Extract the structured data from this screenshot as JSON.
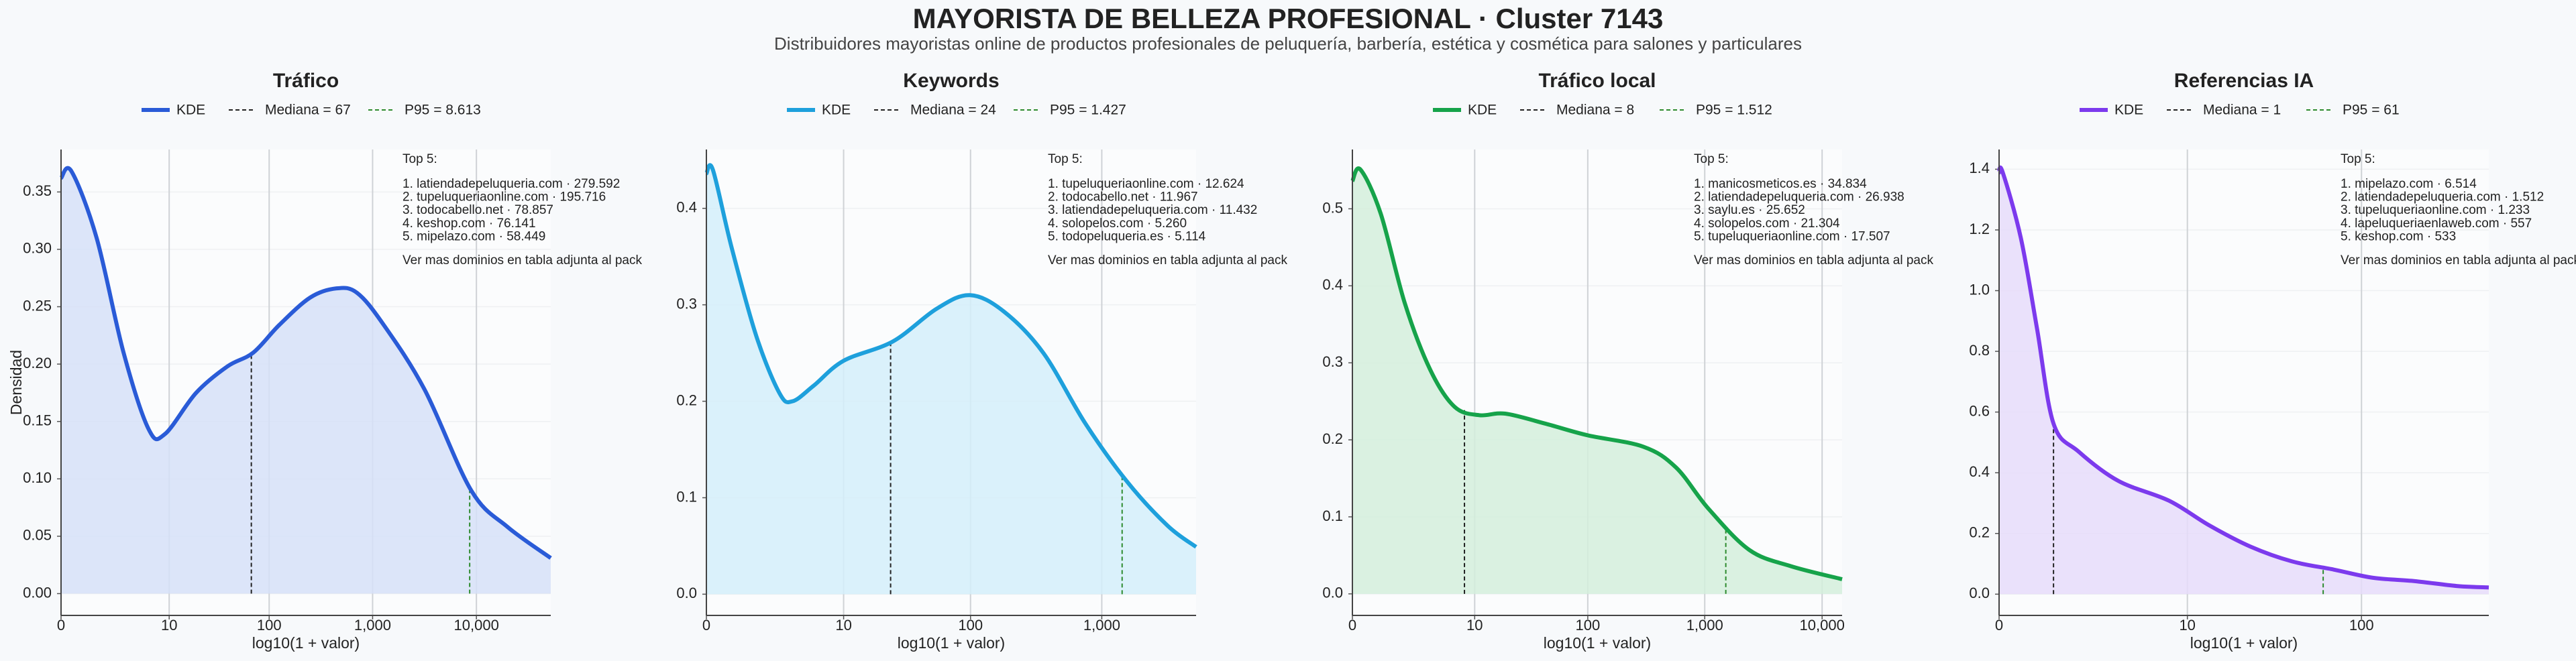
{
  "title": "MAYORISTA DE BELLEZA PROFESIONAL · Cluster 7143",
  "subtitle": "Distribuidores mayoristas online de productos profesionales de peluquería, barbería, estética y cosmética para salones y particulares",
  "chart_data": [
    {
      "type": "area",
      "title": "Tráfico",
      "xlabel": "log10(1 + valor)",
      "ylabel": "Densidad",
      "xscale": "log1p",
      "grid": true,
      "x": [
        0,
        0.26,
        1.2,
        3,
        6,
        9,
        19,
        39,
        70,
        125,
        250,
        450,
        710,
        1260,
        3160,
        8900,
        20000,
        52000
      ],
      "series": [
        {
          "name": "KDE",
          "color": "#2a5bd7",
          "fill": "#d6e0f8",
          "values": [
            0.362,
            0.368,
            0.31,
            0.21,
            0.143,
            0.139,
            0.175,
            0.198,
            0.21,
            0.234,
            0.258,
            0.266,
            0.262,
            0.235,
            0.178,
            0.09,
            0.058,
            0.031
          ]
        }
      ],
      "lines": [
        {
          "name": "Mediana = 67",
          "value": 67,
          "color": "#222222"
        },
        {
          "name": "P95 = 8.613",
          "value": 8613,
          "color": "#2e8b2e"
        }
      ],
      "xlim": [
        0,
        52000
      ],
      "xticks": [
        0,
        10,
        100,
        {
          "value": 1000,
          "label": "1,000"
        },
        {
          "value": 10000,
          "label": "10,000"
        }
      ],
      "ylim": [
        -0.019,
        0.387
      ],
      "yticks": [
        {
          "value": 0,
          "label": "0.00"
        },
        0.05,
        {
          "value": 0.1,
          "label": "0.10"
        },
        0.15,
        {
          "value": 0.2,
          "label": "0.20"
        },
        0.25,
        {
          "value": 0.3,
          "label": "0.30"
        },
        0.35
      ],
      "annotation": {
        "heading": "Top 5:",
        "items": [
          "1. latiendadepeluqueria.com · 279.592",
          "2. tupeluqueriaonline.com · 195.716",
          "3. todocabello.net · 78.857",
          "4. keshop.com · 76.141",
          "5. mipelazo.com · 58.449"
        ],
        "note": "Ver mas dominios en tabla adjunta al pack"
      }
    },
    {
      "type": "area",
      "title": "Keywords",
      "xlabel": "log10(1 + valor)",
      "xscale": "log1p",
      "grid": true,
      "x": [
        0,
        0.12,
        0.55,
        1.4,
        2.6,
        3.5,
        5.5,
        10,
        25,
        55,
        99,
        180,
        360,
        750,
        1550,
        3160,
        5200
      ],
      "series": [
        {
          "name": "KDE",
          "color": "#1ea0dc",
          "fill": "#d3eefa",
          "values": [
            0.436,
            0.44,
            0.36,
            0.267,
            0.208,
            0.2,
            0.216,
            0.242,
            0.262,
            0.296,
            0.31,
            0.293,
            0.25,
            0.177,
            0.117,
            0.071,
            0.049
          ]
        }
      ],
      "lines": [
        {
          "name": "Mediana = 24",
          "value": 24,
          "color": "#222222"
        },
        {
          "name": "P95 = 1.427",
          "value": 1427,
          "color": "#2e8b2e"
        }
      ],
      "xlim": [
        0,
        5200
      ],
      "xticks": [
        0,
        10,
        100,
        {
          "value": 1000,
          "label": "1,000"
        }
      ],
      "ylim": [
        -0.022,
        0.461
      ],
      "yticks": [
        {
          "value": 0,
          "label": "0.0"
        },
        0.1,
        0.2,
        0.3,
        0.4
      ],
      "annotation": {
        "heading": "Top 5:",
        "items": [
          "1. tupeluqueriaonline.com · 12.624",
          "2. todocabello.net · 11.967",
          "3. latiendadepeluqueria.com · 11.432",
          "4. solopelos.com · 5.260",
          "5. todopeluqueria.es · 5.114"
        ],
        "note": "Ver mas dominios en tabla adjunta al pack"
      }
    },
    {
      "type": "area",
      "title": "Tráfico local",
      "xlabel": "log10(1 + valor)",
      "xscale": "log1p",
      "grid": true,
      "x": [
        0,
        0.17,
        0.74,
        1.8,
        3.6,
        6.4,
        11,
        19,
        43,
        99,
        300,
        570,
        1070,
        2400,
        5400,
        14800
      ],
      "series": [
        {
          "name": "KDE",
          "color": "#16a34a",
          "fill": "#d3eedc",
          "values": [
            0.536,
            0.551,
            0.494,
            0.377,
            0.291,
            0.243,
            0.232,
            0.234,
            0.221,
            0.206,
            0.191,
            0.164,
            0.111,
            0.057,
            0.036,
            0.019
          ]
        }
      ],
      "lines": [
        {
          "name": "Mediana = 8",
          "value": 8,
          "color": "#222222"
        },
        {
          "name": "P95 = 1.512",
          "value": 1512,
          "color": "#2e8b2e"
        }
      ],
      "xlim": [
        0,
        14800
      ],
      "xticks": [
        0,
        10,
        100,
        {
          "value": 1000,
          "label": "1,000"
        },
        {
          "value": 10000,
          "label": "10,000"
        }
      ],
      "ylim": [
        -0.028,
        0.577
      ],
      "yticks": [
        {
          "value": 0,
          "label": "0.0"
        },
        0.1,
        0.2,
        0.3,
        0.4,
        0.5
      ],
      "annotation": {
        "heading": "Top 5:",
        "items": [
          "1. manicosmeticos.es · 34.834",
          "2. latiendadepeluqueria.com · 26.938",
          "3. saylu.es · 25.652",
          "4. solopelos.com · 21.304",
          "5. tupeluqueriaonline.com · 17.507"
        ],
        "note": "Ver mas dominios en tabla adjunta al pack"
      }
    },
    {
      "type": "area",
      "title": "Referencias IA",
      "xlabel": "log10(1 + valor)",
      "xscale": "log1p",
      "grid": true,
      "x": [
        0,
        0.047,
        0.32,
        0.62,
        1,
        1.75,
        3.57,
        7.7,
        13.5,
        23.5,
        40.7,
        70,
        116,
        198,
        338,
        510
      ],
      "series": [
        {
          "name": "KDE",
          "color": "#7c3aed",
          "fill": "#e6dcfa",
          "values": [
            1.389,
            1.39,
            1.173,
            0.876,
            0.562,
            0.47,
            0.373,
            0.308,
            0.227,
            0.157,
            0.108,
            0.081,
            0.054,
            0.043,
            0.027,
            0.022
          ]
        }
      ],
      "lines": [
        {
          "name": "Mediana = 1",
          "value": 1,
          "color": "#222222"
        },
        {
          "name": "P95 = 61",
          "value": 61,
          "color": "#2e8b2e"
        }
      ],
      "xlim": [
        0,
        510
      ],
      "xticks": [
        0,
        10,
        100
      ],
      "ylim": [
        -0.07,
        1.465
      ],
      "yticks": [
        {
          "value": 0,
          "label": "0.0"
        },
        0.2,
        {
          "value": 0.4,
          "label": "0.4"
        },
        {
          "value": 0.6,
          "label": "0.6"
        },
        {
          "value": 0.8,
          "label": "0.8"
        },
        {
          "value": 1,
          "label": "1.0"
        },
        1.2,
        1.4
      ],
      "annotation": {
        "heading": "Top 5:",
        "items": [
          "1. mipelazo.com · 6.514",
          "2. latiendadepeluqueria.com · 1.512",
          "3. tupeluqueriaonline.com · 1.233",
          "4. lapeluqueriaenlaweb.com · 557",
          "5. keshop.com · 533"
        ],
        "note": "Ver mas dominios en tabla adjunta al pack"
      }
    }
  ]
}
